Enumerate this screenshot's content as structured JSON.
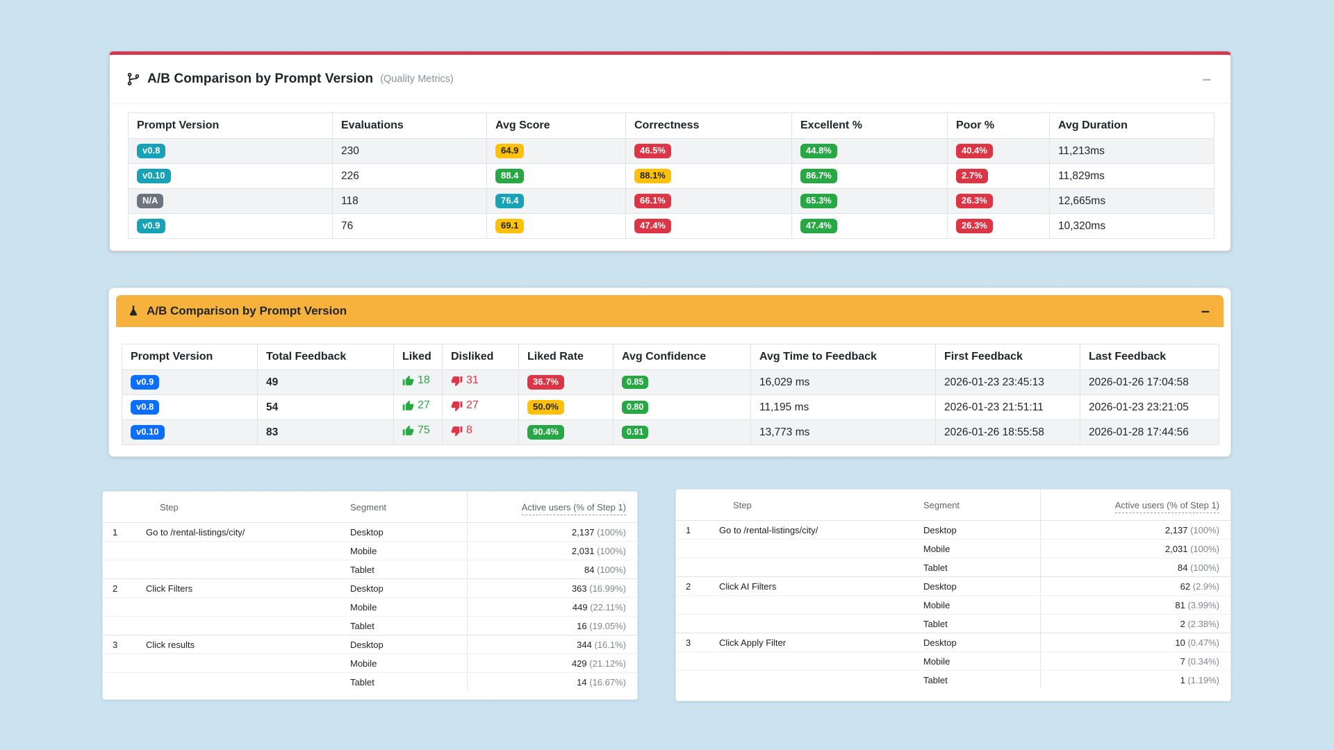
{
  "controls": {
    "minimize": "–"
  },
  "quality_panel": {
    "icon": "git-branch-icon",
    "title": "A/B Comparison by Prompt Version",
    "subtitle": "(Quality Metrics)",
    "columns": [
      "Prompt Version",
      "Evaluations",
      "Avg Score",
      "Correctness",
      "Excellent %",
      "Poor %",
      "Avg Duration"
    ],
    "rows": [
      {
        "version": {
          "text": "v0.8",
          "color": "teal"
        },
        "evaluations": "230",
        "avg_score": {
          "text": "64.9",
          "color": "yellow"
        },
        "correctness": {
          "text": "46.5%",
          "color": "red"
        },
        "excellent": {
          "text": "44.8%",
          "color": "green"
        },
        "poor": {
          "text": "40.4%",
          "color": "red"
        },
        "avg_duration": "11,213ms"
      },
      {
        "version": {
          "text": "v0.10",
          "color": "teal"
        },
        "evaluations": "226",
        "avg_score": {
          "text": "88.4",
          "color": "green"
        },
        "correctness": {
          "text": "88.1%",
          "color": "yellow"
        },
        "excellent": {
          "text": "86.7%",
          "color": "green"
        },
        "poor": {
          "text": "2.7%",
          "color": "red"
        },
        "avg_duration": "11,829ms"
      },
      {
        "version": {
          "text": "N/A",
          "color": "gray"
        },
        "evaluations": "118",
        "avg_score": {
          "text": "76.4",
          "color": "teal"
        },
        "correctness": {
          "text": "66.1%",
          "color": "red"
        },
        "excellent": {
          "text": "65.3%",
          "color": "green"
        },
        "poor": {
          "text": "26.3%",
          "color": "red"
        },
        "avg_duration": "12,665ms"
      },
      {
        "version": {
          "text": "v0.9",
          "color": "teal"
        },
        "evaluations": "76",
        "avg_score": {
          "text": "69.1",
          "color": "yellow"
        },
        "correctness": {
          "text": "47.4%",
          "color": "red"
        },
        "excellent": {
          "text": "47.4%",
          "color": "green"
        },
        "poor": {
          "text": "26.3%",
          "color": "red"
        },
        "avg_duration": "10,320ms"
      }
    ]
  },
  "feedback_panel": {
    "icon": "flask-icon",
    "title": "A/B Comparison by Prompt Version",
    "columns": [
      "Prompt Version",
      "Total Feedback",
      "Liked",
      "Disliked",
      "Liked Rate",
      "Avg Confidence",
      "Avg Time to Feedback",
      "First Feedback",
      "Last Feedback"
    ],
    "rows": [
      {
        "version": "v0.9",
        "total": "49",
        "liked": "18",
        "disliked": "31",
        "liked_rate": {
          "text": "36.7%",
          "color": "red"
        },
        "confidence": "0.85",
        "avg_time": "16,029 ms",
        "first_feedback": "2026-01-23 23:45:13",
        "last_feedback": "2026-01-26 17:04:58"
      },
      {
        "version": "v0.8",
        "total": "54",
        "liked": "27",
        "disliked": "27",
        "liked_rate": {
          "text": "50.0%",
          "color": "yellow"
        },
        "confidence": "0.80",
        "avg_time": "11,195 ms",
        "first_feedback": "2026-01-23 21:51:11",
        "last_feedback": "2026-01-23 23:21:05"
      },
      {
        "version": "v0.10",
        "total": "83",
        "liked": "75",
        "disliked": "8",
        "liked_rate": {
          "text": "90.4%",
          "color": "green"
        },
        "confidence": "0.91",
        "avg_time": "13,773 ms",
        "first_feedback": "2026-01-26 18:55:58",
        "last_feedback": "2026-01-28 17:44:56"
      }
    ]
  },
  "funnels": [
    {
      "headers": {
        "step": "Step",
        "segment": "Segment",
        "users": "Active users (% of Step 1)"
      },
      "steps": [
        {
          "num": "1",
          "label": "Go to /rental-listings/city/",
          "segments": [
            {
              "name": "Desktop",
              "value": "2,137",
              "pct": "(100%)"
            },
            {
              "name": "Mobile",
              "value": "2,031",
              "pct": "(100%)"
            },
            {
              "name": "Tablet",
              "value": "84",
              "pct": "(100%)"
            }
          ]
        },
        {
          "num": "2",
          "label": "Click Filters",
          "segments": [
            {
              "name": "Desktop",
              "value": "363",
              "pct": "(16.99%)"
            },
            {
              "name": "Mobile",
              "value": "449",
              "pct": "(22.11%)"
            },
            {
              "name": "Tablet",
              "value": "16",
              "pct": "(19.05%)"
            }
          ]
        },
        {
          "num": "3",
          "label": "Click results",
          "segments": [
            {
              "name": "Desktop",
              "value": "344",
              "pct": "(16.1%)"
            },
            {
              "name": "Mobile",
              "value": "429",
              "pct": "(21.12%)"
            },
            {
              "name": "Tablet",
              "value": "14",
              "pct": "(16.67%)"
            }
          ]
        }
      ]
    },
    {
      "headers": {
        "step": "Step",
        "segment": "Segment",
        "users": "Active users (% of Step 1)"
      },
      "steps": [
        {
          "num": "1",
          "label": "Go to /rental-listings/city/",
          "segments": [
            {
              "name": "Desktop",
              "value": "2,137",
              "pct": "(100%)"
            },
            {
              "name": "Mobile",
              "value": "2,031",
              "pct": "(100%)"
            },
            {
              "name": "Tablet",
              "value": "84",
              "pct": "(100%)"
            }
          ]
        },
        {
          "num": "2",
          "label": "Click AI Filters",
          "segments": [
            {
              "name": "Desktop",
              "value": "62",
              "pct": "(2.9%)"
            },
            {
              "name": "Mobile",
              "value": "81",
              "pct": "(3.99%)"
            },
            {
              "name": "Tablet",
              "value": "2",
              "pct": "(2.38%)"
            }
          ]
        },
        {
          "num": "3",
          "label": "Click Apply Filter",
          "segments": [
            {
              "name": "Desktop",
              "value": "10",
              "pct": "(0.47%)"
            },
            {
              "name": "Mobile",
              "value": "7",
              "pct": "(0.34%)"
            },
            {
              "name": "Tablet",
              "value": "1",
              "pct": "(1.19%)"
            }
          ]
        }
      ]
    }
  ],
  "colors": {
    "page_bg": "#c9e2ee",
    "accent_red": "#d23b4f",
    "header_orange": "#f6b23c",
    "badge_teal": "#17a2b8",
    "badge_blue": "#0d6efd",
    "badge_green": "#28a745",
    "badge_red": "#dc3545",
    "badge_yellow": "#ffc107",
    "badge_gray": "#6c757d"
  }
}
